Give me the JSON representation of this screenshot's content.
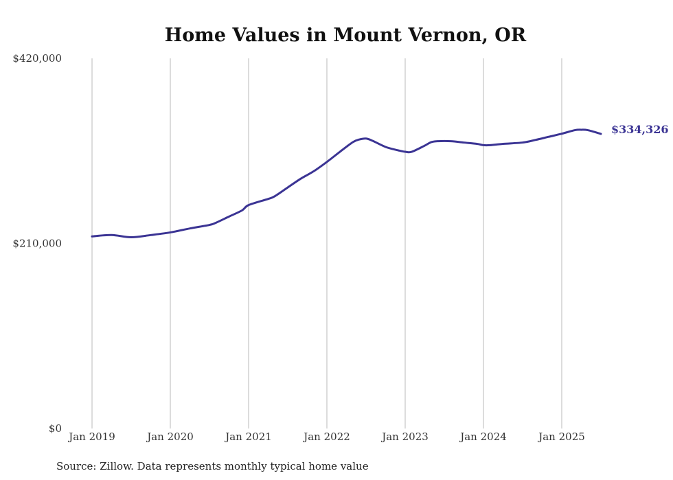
{
  "chart_data": {
    "type": "line",
    "title": "Home Values in Mount Vernon, OR",
    "xlabel": "",
    "ylabel": "",
    "ylim": [
      0,
      420000
    ],
    "y_ticks": [
      {
        "value": 0,
        "label": "$0"
      },
      {
        "value": 210000,
        "label": "$210,000"
      },
      {
        "value": 420000,
        "label": "$420,000"
      }
    ],
    "x_ticks": [
      {
        "month": 0,
        "label": "Jan 2019"
      },
      {
        "month": 12,
        "label": "Jan 2020"
      },
      {
        "month": 24,
        "label": "Jan 2021"
      },
      {
        "month": 36,
        "label": "Jan 2022"
      },
      {
        "month": 48,
        "label": "Jan 2023"
      },
      {
        "month": 60,
        "label": "Jan 2024"
      },
      {
        "month": 72,
        "label": "Jan 2025"
      }
    ],
    "x_range_months": [
      0,
      78
    ],
    "grid": "vertical",
    "line_color": "#3b3494",
    "series": [
      {
        "name": "Typical home value",
        "points": [
          [
            "2019-01",
            218000
          ],
          [
            "2019-04",
            219500
          ],
          [
            "2019-07",
            217000
          ],
          [
            "2019-10",
            219500
          ],
          [
            "2020-01",
            222500
          ],
          [
            "2020-04",
            227000
          ],
          [
            "2020-07",
            231000
          ],
          [
            "2020-08",
            233500
          ],
          [
            "2020-10",
            240500
          ],
          [
            "2020-12",
            247500
          ],
          [
            "2021-01",
            253500
          ],
          [
            "2021-04",
            260500
          ],
          [
            "2021-05",
            263500
          ],
          [
            "2021-07",
            273500
          ],
          [
            "2021-09",
            283500
          ],
          [
            "2021-11",
            292000
          ],
          [
            "2022-01",
            302500
          ],
          [
            "2022-03",
            314000
          ],
          [
            "2022-05",
            325000
          ],
          [
            "2022-06",
            328000
          ],
          [
            "2022-07",
            329000
          ],
          [
            "2022-08",
            326500
          ],
          [
            "2022-10",
            319500
          ],
          [
            "2022-12",
            315500
          ],
          [
            "2023-01",
            314000
          ],
          [
            "2023-02",
            314000
          ],
          [
            "2023-04",
            321000
          ],
          [
            "2023-05",
            325000
          ],
          [
            "2023-06",
            326000
          ],
          [
            "2023-08",
            326000
          ],
          [
            "2023-10",
            324500
          ],
          [
            "2023-12",
            323000
          ],
          [
            "2024-01",
            321500
          ],
          [
            "2024-02",
            321500
          ],
          [
            "2024-04",
            323000
          ],
          [
            "2024-07",
            324500
          ],
          [
            "2024-09",
            327500
          ],
          [
            "2024-11",
            331000
          ],
          [
            "2025-01",
            334500
          ],
          [
            "2025-03",
            338500
          ],
          [
            "2025-04",
            339000
          ],
          [
            "2025-05",
            338500
          ],
          [
            "2025-07",
            334326
          ]
        ]
      }
    ],
    "end_label": "$334,326",
    "source": "Source: Zillow. Data represents monthly typical home value"
  }
}
